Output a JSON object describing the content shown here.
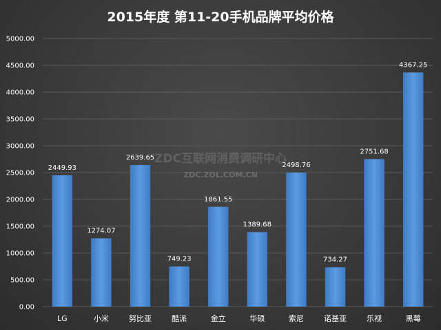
{
  "chart_data": {
    "type": "bar",
    "title": "2015年度 第11-20手机品牌平均价格",
    "categories": [
      "LG",
      "小米",
      "努比亚",
      "酷派",
      "金立",
      "华硕",
      "索尼",
      "诺基亚",
      "乐视",
      "黑莓"
    ],
    "values": [
      2449.93,
      1274.07,
      2639.65,
      749.23,
      1861.55,
      1389.68,
      2498.76,
      734.27,
      2751.68,
      4367.25
    ],
    "value_labels": [
      "2449.93",
      "1274.07",
      "2639.65",
      "749.23",
      "1861.55",
      "1389.68",
      "2498.76",
      "734.27",
      "2751.68",
      "4367.25"
    ],
    "ylim": [
      0,
      5000
    ],
    "yticks": [
      "0.00",
      "500.00",
      "1000.00",
      "1500.00",
      "2000.00",
      "2500.00",
      "3000.00",
      "3500.00",
      "4000.00",
      "4500.00",
      "5000.00"
    ],
    "grid": true,
    "bar_color": "#4f8fd6"
  },
  "watermark": {
    "line1": "ZDC互联网消费调研中心",
    "line2": "ZDC.ZOL.COM.CN"
  }
}
